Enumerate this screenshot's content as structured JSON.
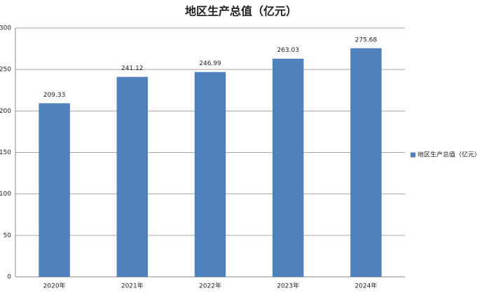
{
  "chart_data": {
    "type": "bar",
    "title": "地区生产总值（亿元）",
    "categories": [
      "2020年",
      "2021年",
      "2022年",
      "2023年",
      "2024年"
    ],
    "series": [
      {
        "name": "地区生产总值（亿元）",
        "color": "#4f81bd",
        "values": [
          209.33,
          241.12,
          246.99,
          263.03,
          275.68
        ]
      }
    ],
    "ylim": [
      0,
      300
    ],
    "yticks": [
      0,
      50,
      100,
      150,
      200,
      250,
      300
    ],
    "grid": true,
    "legend": "right"
  }
}
